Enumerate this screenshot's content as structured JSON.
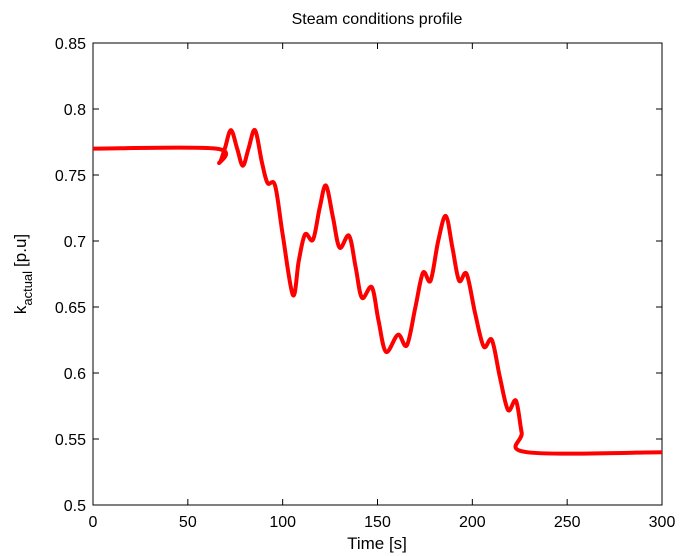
{
  "chart_data": {
    "type": "line",
    "title": "Steam conditions profile",
    "xlabel": "Time [s]",
    "ylabel": {
      "base": "k",
      "sub": "actual",
      "rest": "[p.u]"
    },
    "x": [
      0,
      65,
      66.5,
      69.5,
      72.7,
      76,
      79,
      82,
      85.4,
      89,
      92,
      96,
      100,
      105.4,
      108.5,
      111.8,
      116,
      119.5,
      122.8,
      126.5,
      130,
      135,
      138.5,
      141.8,
      147,
      150.5,
      154.5,
      160.8,
      165.5,
      170,
      174,
      178,
      182,
      186,
      189.5,
      193,
      197,
      201.5,
      206,
      210.3,
      214.5,
      218.8,
      223,
      226,
      228.8,
      300
    ],
    "series": [
      {
        "color": "#ff0000",
        "values": [
          0.77,
          0.77,
          0.759,
          0.77,
          0.784,
          0.77,
          0.757,
          0.77,
          0.784,
          0.76,
          0.744,
          0.742,
          0.705,
          0.659,
          0.685,
          0.705,
          0.701,
          0.725,
          0.742,
          0.718,
          0.695,
          0.704,
          0.68,
          0.657,
          0.665,
          0.64,
          0.616,
          0.629,
          0.621,
          0.65,
          0.676,
          0.67,
          0.7,
          0.719,
          0.695,
          0.67,
          0.675,
          0.645,
          0.62,
          0.625,
          0.597,
          0.572,
          0.579,
          0.555,
          0.54,
          0.54
        ]
      }
    ],
    "xlim": [
      0,
      300
    ],
    "xticks": [
      0,
      50,
      100,
      150,
      200,
      250,
      300
    ],
    "ylim": [
      0.5,
      0.85
    ],
    "yticks": [
      0.5,
      0.55,
      0.6,
      0.65,
      0.7,
      0.75,
      0.8,
      0.85
    ]
  }
}
